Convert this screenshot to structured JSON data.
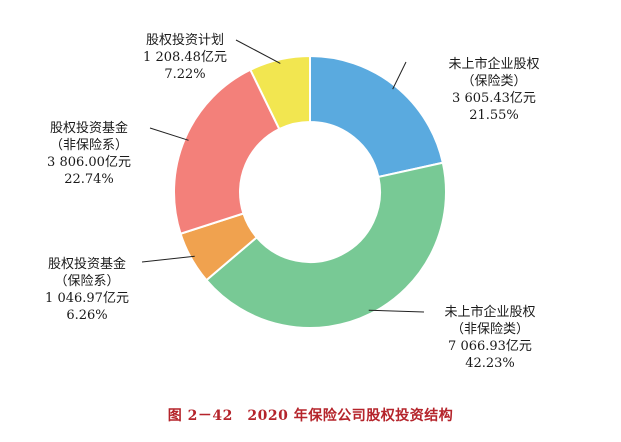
{
  "chart_data": {
    "type": "pie",
    "donut": true,
    "title": "图 2－42　2020 年保险公司股权投资结构",
    "unit": "亿元",
    "slices": [
      {
        "line1": "未上市企业股权",
        "line2": "（保险类）",
        "value_text": "3 605.43亿元",
        "pct_text": "21.55%",
        "value": 3605.43,
        "percent": 21.55,
        "color": "#5aaadf"
      },
      {
        "line1": "未上市企业股权",
        "line2": "（非保险类）",
        "value_text": "7 066.93亿元",
        "pct_text": "42.23%",
        "value": 7066.93,
        "percent": 42.23,
        "color": "#78c995"
      },
      {
        "line1": "股权投资基金",
        "line2": "（保险系）",
        "value_text": "1 046.97亿元",
        "pct_text": "6.26%",
        "value": 1046.97,
        "percent": 6.26,
        "color": "#f0a24f"
      },
      {
        "line1": "股权投资基金",
        "line2": "（非保险系）",
        "value_text": "3 806.00亿元",
        "pct_text": "22.74%",
        "value": 3806.0,
        "percent": 22.74,
        "color": "#f3807a"
      },
      {
        "line1": "股权投资计划",
        "line2": "",
        "value_text": "1 208.48亿元",
        "pct_text": "7.22%",
        "value": 1208.48,
        "percent": 7.22,
        "color": "#f2e650"
      }
    ]
  }
}
